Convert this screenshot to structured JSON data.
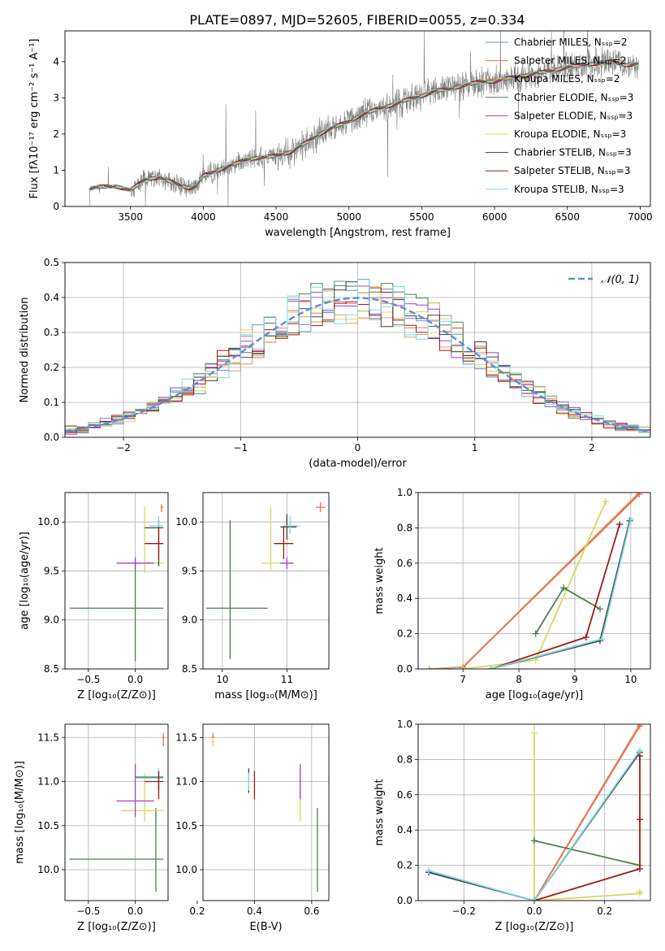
{
  "figure_title": "PLATE=0897, MJD=52605, FIBERID=0055, z=0.334",
  "colors": {
    "observed": "#808080",
    "grid": "#b0b0b0",
    "normal_curve": "#5b8fd8",
    "models": [
      "#6a8fd0",
      "#f07050",
      "#d0a060",
      "#4f7f4f",
      "#a040d0",
      "#d8d860",
      "#404040",
      "#a01818",
      "#80d8e0"
    ]
  },
  "chart_data": [
    {
      "type": "line",
      "id": "spectrum",
      "title": "",
      "xlabel": "wavelength [Angstrom, rest frame]",
      "ylabel": "Flux [fλ10⁻¹⁷ erg cm⁻² s⁻¹ A⁻¹]",
      "xlim": [
        3050,
        7070
      ],
      "ylim": [
        0,
        4.85
      ],
      "xticks": [
        3500,
        4000,
        4500,
        5000,
        5500,
        6000,
        6500,
        7000
      ],
      "yticks": [
        0,
        1,
        2,
        3,
        4
      ],
      "grid": false,
      "legend_position": "upper right",
      "legend": [
        "Chabrier MILES, Nₛₛₚ=2",
        "Salpeter MILES, Nₛₛₚ=2",
        "Kroupa MILES, Nₛₛₚ=2",
        "Chabrier ELODIE, Nₛₛₚ=3",
        "Salpeter ELODIE, Nₛₛₚ=3",
        "Kroupa ELODIE, Nₛₛₚ=3",
        "Chabrier STELIB, Nₛₛₚ=3",
        "Salpeter STELIB, Nₛₛₚ=3",
        "Kroupa STELIB, Nₛₛₚ=3"
      ],
      "continuum": {
        "x": [
          3220,
          3300,
          3400,
          3500,
          3600,
          3700,
          3800,
          3900,
          3950,
          4000,
          4100,
          4200,
          4300,
          4400,
          4500,
          4600,
          4700,
          4800,
          4900,
          5000,
          5100,
          5200,
          5300,
          5400,
          5500,
          5600,
          5700,
          5800,
          5900,
          6000,
          6100,
          6200,
          6300,
          6400,
          6500,
          6600,
          6700,
          6800,
          6900,
          7000
        ],
        "y": [
          0.5,
          0.55,
          0.55,
          0.45,
          0.75,
          0.8,
          0.65,
          0.5,
          0.55,
          0.85,
          1.0,
          1.15,
          1.3,
          1.35,
          1.4,
          1.5,
          1.75,
          2.0,
          2.2,
          2.35,
          2.55,
          2.7,
          2.8,
          2.95,
          3.05,
          3.2,
          3.25,
          3.35,
          3.45,
          3.45,
          3.55,
          3.6,
          3.7,
          3.75,
          3.85,
          3.9,
          3.95,
          4.0,
          3.9,
          3.95
        ]
      },
      "observed_x_range": [
        3220,
        6990
      ]
    },
    {
      "type": "bar",
      "id": "residuals",
      "title": "",
      "xlabel": "(data-model)/error",
      "ylabel": "Normed distribution",
      "xlim": [
        -2.5,
        2.5
      ],
      "ylim": [
        0,
        0.5
      ],
      "xticks": [
        -2,
        -1,
        0,
        1,
        2
      ],
      "yticks": [
        0,
        0.1,
        0.2,
        0.3,
        0.4,
        0.5
      ],
      "grid": true,
      "legend_position": "upper right",
      "legend": [
        "𝒩(0, 1)"
      ],
      "normal": {
        "mean": 0,
        "sigma": 1
      },
      "bin_width": 0.1
    },
    {
      "type": "scatter",
      "id": "age-vs-z",
      "xlabel": "Z [log₁₀(Z/Z⊙)]",
      "ylabel": "age [log₁₀(age/yr)]",
      "xlim": [
        -0.75,
        0.35
      ],
      "ylim": [
        8.5,
        10.3
      ],
      "xticks": [
        -0.5,
        0.0
      ],
      "yticks": [
        8.5,
        9.0,
        9.5,
        10.0
      ],
      "grid": true,
      "points": [
        {
          "m": 3,
          "x": 0.0,
          "y": 9.12,
          "ex": [
            -0.7,
            0.3
          ],
          "ey": [
            8.58,
            9.62
          ]
        },
        {
          "m": 5,
          "x": 0.1,
          "y": 9.58,
          "ex": [
            -0.15,
            0.3
          ],
          "ey": [
            9.48,
            10.15
          ]
        },
        {
          "m": 6,
          "x": 0.25,
          "y": 9.94,
          "ex": [
            0.1,
            0.3
          ],
          "ey": [
            9.55,
            10.02
          ]
        },
        {
          "m": 8,
          "x": 0.25,
          "y": 9.96,
          "ex": [
            0.15,
            0.3
          ],
          "ey": [
            9.88,
            10.06
          ]
        },
        {
          "m": 7,
          "x": 0.25,
          "y": 9.78,
          "ex": [
            0.1,
            0.3
          ],
          "ey": [
            9.62,
            9.95
          ]
        },
        {
          "m": 1,
          "x": 0.28,
          "y": 10.15,
          "ex": [
            0.27,
            0.3
          ],
          "ey": [
            10.1,
            10.18
          ]
        },
        {
          "m": 4,
          "x": 0.0,
          "y": 9.58,
          "ex": [
            -0.2,
            0.2
          ],
          "ey": [
            9.52,
            9.64
          ]
        }
      ]
    },
    {
      "type": "scatter",
      "id": "age-vs-mass",
      "xlabel": "mass [log₁₀(M/M⊙)]",
      "ylabel": "",
      "xlim": [
        9.7,
        11.65
      ],
      "ylim": [
        8.5,
        10.3
      ],
      "xticks": [
        10,
        11
      ],
      "yticks": [
        8.5,
        9.0,
        9.5,
        10.0
      ],
      "grid": true,
      "points": [
        {
          "m": 3,
          "x": 10.12,
          "y": 9.12,
          "ex": [
            9.75,
            10.7
          ],
          "ey": [
            8.6,
            10.02
          ]
        },
        {
          "m": 5,
          "x": 10.75,
          "y": 9.58,
          "ex": [
            10.6,
            11.1
          ],
          "ey": [
            9.5,
            10.15
          ]
        },
        {
          "m": 6,
          "x": 11.0,
          "y": 9.95,
          "ex": [
            10.9,
            11.15
          ],
          "ey": [
            9.82,
            10.08
          ]
        },
        {
          "m": 8,
          "x": 11.05,
          "y": 9.96,
          "ex": [
            10.95,
            11.2
          ],
          "ey": [
            9.88,
            10.06
          ]
        },
        {
          "m": 7,
          "x": 10.95,
          "y": 9.78,
          "ex": [
            10.8,
            11.1
          ],
          "ey": [
            9.62,
            9.95
          ]
        },
        {
          "m": 1,
          "x": 11.52,
          "y": 10.15,
          "ex": [
            11.45,
            11.6
          ],
          "ey": [
            10.1,
            10.2
          ]
        },
        {
          "m": 4,
          "x": 11.0,
          "y": 9.58,
          "ex": [
            10.9,
            11.1
          ],
          "ey": [
            9.52,
            9.64
          ]
        }
      ]
    },
    {
      "type": "line",
      "id": "weight-vs-age",
      "xlabel": "age [log₁₀(age/yr)]",
      "ylabel": "mass weight",
      "xlim": [
        6.2,
        10.35
      ],
      "ylim": [
        0,
        1.0
      ],
      "xticks": [
        7,
        8,
        9,
        10
      ],
      "yticks": [
        0.0,
        0.2,
        0.4,
        0.6,
        0.8,
        1.0
      ],
      "grid": true,
      "lines": [
        {
          "m": 2,
          "x": [
            6.4,
            7.0,
            10.15
          ],
          "y": [
            0.0,
            0.01,
            1.0
          ]
        },
        {
          "m": 1,
          "x": [
            7.0,
            10.15
          ],
          "y": [
            0.01,
            0.99
          ]
        },
        {
          "m": 5,
          "x": [
            7.0,
            8.3,
            9.55
          ],
          "y": [
            0.0,
            0.05,
            0.95
          ]
        },
        {
          "m": 3,
          "x": [
            8.3,
            8.8,
            9.45
          ],
          "y": [
            0.2,
            0.46,
            0.34
          ]
        },
        {
          "m": 7,
          "x": [
            7.5,
            9.2,
            9.8
          ],
          "y": [
            0.0,
            0.18,
            0.82
          ]
        },
        {
          "m": 6,
          "x": [
            7.5,
            9.45,
            9.98
          ],
          "y": [
            0.0,
            0.16,
            0.84
          ]
        },
        {
          "m": 8,
          "x": [
            7.5,
            9.48,
            10.0
          ],
          "y": [
            0.0,
            0.17,
            0.85
          ]
        }
      ]
    },
    {
      "type": "scatter",
      "id": "mass-vs-z",
      "xlabel": "Z [log₁₀(Z/Z⊙)]",
      "ylabel": "mass [log₁₀(M/M⊙)]",
      "xlim": [
        -0.75,
        0.35
      ],
      "ylim": [
        9.65,
        11.65
      ],
      "xticks": [
        -0.5,
        0.0
      ],
      "yticks": [
        10.0,
        10.5,
        11.0,
        11.5
      ],
      "grid": true,
      "points": [
        {
          "m": 3,
          "x": 0.22,
          "y": 10.12,
          "ex": [
            -0.7,
            0.3
          ],
          "ey": [
            9.75,
            10.7
          ]
        },
        {
          "m": 5,
          "x": 0.1,
          "y": 10.67,
          "ex": [
            -0.15,
            0.3
          ],
          "ey": [
            10.55,
            11.1
          ]
        },
        {
          "m": 4,
          "x": 0.0,
          "y": 10.78,
          "ex": [
            -0.2,
            0.2
          ],
          "ey": [
            10.6,
            11.2
          ]
        },
        {
          "m": 6,
          "x": 0.25,
          "y": 11.05,
          "ex": [
            0.0,
            0.3
          ],
          "ey": [
            10.9,
            11.1
          ]
        },
        {
          "m": 8,
          "x": 0.25,
          "y": 11.04,
          "ex": [
            0.0,
            0.3
          ],
          "ey": [
            10.95,
            11.15
          ]
        },
        {
          "m": 7,
          "x": 0.25,
          "y": 11.0,
          "ex": [
            0.1,
            0.3
          ],
          "ey": [
            10.8,
            11.12
          ]
        },
        {
          "m": 1,
          "x": 0.3,
          "y": 11.5,
          "ex": [
            0.29,
            0.31
          ],
          "ey": [
            11.4,
            11.55
          ]
        }
      ]
    },
    {
      "type": "scatter",
      "id": "mass-vs-ebv",
      "xlabel": "E(B-V)",
      "ylabel": "",
      "xlim": [
        0.22,
        0.66
      ],
      "ylim": [
        9.65,
        11.65
      ],
      "xticks": [
        0.2,
        0.4,
        0.6
      ],
      "yticks": [
        10.0,
        10.5,
        11.0,
        11.5
      ],
      "grid": true,
      "points": [
        {
          "m": 3,
          "x": 0.62,
          "y": 10.2,
          "ex": [
            0.62,
            0.62
          ],
          "ey": [
            9.75,
            10.7
          ]
        },
        {
          "m": 5,
          "x": 0.56,
          "y": 10.67,
          "ex": [
            0.56,
            0.56
          ],
          "ey": [
            10.55,
            11.1
          ]
        },
        {
          "m": 4,
          "x": 0.56,
          "y": 11.0,
          "ex": [
            0.56,
            0.56
          ],
          "ey": [
            10.8,
            11.2
          ]
        },
        {
          "m": 6,
          "x": 0.38,
          "y": 11.0,
          "ex": [
            0.38,
            0.38
          ],
          "ey": [
            10.87,
            11.15
          ]
        },
        {
          "m": 8,
          "x": 0.38,
          "y": 11.0,
          "ex": [
            0.38,
            0.38
          ],
          "ey": [
            10.9,
            11.1
          ]
        },
        {
          "m": 7,
          "x": 0.4,
          "y": 10.95,
          "ex": [
            0.4,
            0.4
          ],
          "ey": [
            10.8,
            11.12
          ]
        },
        {
          "m": 1,
          "x": 0.255,
          "y": 11.5,
          "ex": [
            0.25,
            0.26
          ],
          "ey": [
            11.4,
            11.55
          ]
        },
        {
          "m": 5,
          "x": 0.255,
          "y": 11.45,
          "ex": [
            0.25,
            0.26
          ],
          "ey": [
            11.4,
            11.5
          ]
        }
      ]
    },
    {
      "type": "line",
      "id": "weight-vs-z",
      "xlabel": "Z [log₁₀(Z/Z⊙)]",
      "ylabel": "mass weight",
      "xlim": [
        -0.33,
        0.33
      ],
      "ylim": [
        0,
        1.0
      ],
      "xticks": [
        -0.2,
        0.0,
        0.2
      ],
      "yticks": [
        0.0,
        0.2,
        0.4,
        0.6,
        0.8,
        1.0
      ],
      "grid": true,
      "lines": [
        {
          "m": 2,
          "x": [
            0.0,
            0.3
          ],
          "y": [
            0.0,
            1.0
          ]
        },
        {
          "m": 1,
          "x": [
            0.0,
            0.3
          ],
          "y": [
            0.0,
            0.99
          ]
        },
        {
          "m": 5,
          "x": [
            0.0,
            0.0,
            0.3,
            0.3
          ],
          "y": [
            0.95,
            0.0,
            0.04,
            0.05
          ]
        },
        {
          "m": 3,
          "x": [
            0.0,
            0.3
          ],
          "y": [
            0.34,
            0.2
          ]
        },
        {
          "m": 7,
          "x": [
            0.0,
            0.3,
            0.3,
            0.3
          ],
          "y": [
            0.0,
            0.18,
            0.46,
            0.82
          ]
        },
        {
          "m": 6,
          "x": [
            -0.3,
            0.0,
            0.3
          ],
          "y": [
            0.16,
            0.0,
            0.84
          ]
        },
        {
          "m": 8,
          "x": [
            -0.3,
            0.0,
            0.3
          ],
          "y": [
            0.17,
            0.0,
            0.85
          ]
        }
      ]
    }
  ]
}
